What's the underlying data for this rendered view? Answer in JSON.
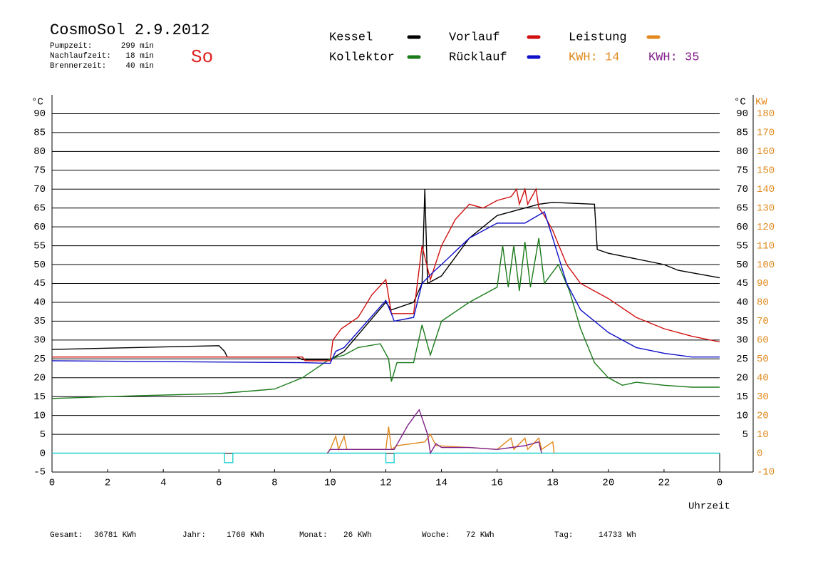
{
  "chart_data": {
    "type": "line",
    "title": "CosmoSol 2.9.2012",
    "day": "So",
    "info": [
      {
        "label": "Pumpzeit:",
        "value": "299 min"
      },
      {
        "label": "Nachlaufzeit:",
        "value": "18 min"
      },
      {
        "label": "Brennerzeit:",
        "value": "40 min"
      }
    ],
    "ylabel": "°C",
    "ylabel_right": "°C",
    "y2label": "KW",
    "xlabel": "Uhrzeit",
    "kwh_labels": [
      {
        "text": "KWH: 14",
        "color": "#e08a1e"
      },
      {
        "text": "KWH: 35",
        "color": "#80208a"
      }
    ],
    "footer": [
      {
        "label": "Gesamt:",
        "value": "36781 KWh"
      },
      {
        "label": "Jahr:",
        "value": "1760 KWh"
      },
      {
        "label": "Monat:",
        "value": "26 KWh"
      },
      {
        "label": "Woche:",
        "value": "72 KWh"
      },
      {
        "label": "Tag:",
        "value": "14733 Wh"
      }
    ],
    "xlim": [
      0,
      24
    ],
    "xticks": [
      0,
      2,
      4,
      6,
      8,
      10,
      12,
      14,
      16,
      18,
      20,
      22,
      {
        "value": 24,
        "label": "0"
      }
    ],
    "ylim": [
      -5,
      95
    ],
    "yticks": [
      -5,
      0,
      5,
      10,
      15,
      20,
      25,
      30,
      35,
      40,
      45,
      50,
      55,
      60,
      65,
      70,
      75,
      80,
      85,
      90
    ],
    "yticks_right": [
      5,
      10,
      15,
      20,
      25,
      30,
      35,
      40,
      45,
      50,
      55,
      60,
      65,
      70,
      75,
      80,
      85,
      90
    ],
    "y2lim": [
      -10,
      190
    ],
    "y2ticks": [
      -10,
      0,
      10,
      20,
      30,
      40,
      50,
      60,
      70,
      80,
      90,
      100,
      110,
      120,
      130,
      140,
      150,
      160,
      170,
      180
    ],
    "grid": true,
    "series": [
      {
        "name": "Kessel",
        "color": "#000000",
        "x": [
          0,
          3,
          6,
          6.2,
          6.3,
          8.8,
          9,
          10,
          10.5,
          12,
          12.2,
          13,
          13.3,
          13.4,
          13.5,
          14,
          15,
          16,
          17,
          17.5,
          18,
          19.5,
          19.6,
          20,
          22,
          22.5,
          24
        ],
        "values": [
          27.5,
          28,
          28.5,
          27,
          25.5,
          25.5,
          24.8,
          24.8,
          27,
          40,
          38,
          40,
          45,
          70,
          45,
          47,
          57,
          63,
          65,
          66,
          66.5,
          66,
          54,
          53,
          50,
          48.5,
          46.5
        ]
      },
      {
        "name": "Kollektor",
        "color": "#1a7a1a",
        "x": [
          0,
          3,
          6,
          8,
          9,
          10,
          10.5,
          11,
          11.8,
          12.1,
          12.2,
          12.4,
          13,
          13.3,
          13.6,
          14,
          15,
          15.5,
          16,
          16.2,
          16.4,
          16.6,
          16.8,
          17,
          17.2,
          17.5,
          17.7,
          17.9,
          18.2,
          18.6,
          19,
          19.5,
          20,
          20.5,
          21,
          22,
          23,
          24
        ],
        "values": [
          14.5,
          15.2,
          15.8,
          17,
          20,
          25,
          26,
          28,
          29,
          25,
          19,
          24,
          24,
          34,
          26,
          35,
          40,
          42,
          44,
          55,
          44,
          55,
          43,
          56,
          44,
          57,
          45,
          47,
          50,
          43,
          33,
          24,
          20,
          18,
          18.8,
          18,
          17.5,
          17.5
        ]
      },
      {
        "name": "Vorlauf",
        "color": "#d01010",
        "x": [
          0,
          9,
          9.1,
          10,
          10.1,
          10.4,
          11,
          11.5,
          12,
          12.2,
          13,
          13.3,
          13.6,
          14,
          14.5,
          15,
          15.5,
          16,
          16.5,
          16.7,
          16.8,
          17,
          17.1,
          17.4,
          17.5,
          17.7,
          18,
          18.5,
          19,
          20,
          21,
          22,
          23,
          24
        ],
        "values": [
          25.5,
          25.5,
          24.5,
          24.5,
          30,
          33,
          36,
          42,
          46,
          37,
          37,
          55,
          46,
          55,
          62,
          66,
          65,
          67,
          68,
          70,
          66,
          70,
          66,
          70,
          65,
          63,
          59,
          50,
          45,
          41,
          36,
          33,
          31,
          29.5
        ]
      },
      {
        "name": "Rücklauf",
        "color": "#1010c8",
        "x": [
          0,
          9,
          10,
          10.2,
          10.5,
          12,
          12.2,
          12.3,
          13,
          13.3,
          13.7,
          14,
          15,
          16,
          17,
          17.7,
          18,
          18.5,
          19,
          20,
          21,
          22,
          23,
          24
        ],
        "values": [
          24.5,
          24,
          23.8,
          27,
          28,
          40.5,
          37,
          35,
          36,
          45,
          48,
          50,
          57,
          61,
          61,
          64,
          57,
          45,
          38,
          32,
          28,
          26.5,
          25.5,
          25.5
        ]
      },
      {
        "name": "Leistung",
        "color": "#e08a1e",
        "axis": "y2",
        "x": [
          9.9,
          10,
          10.2,
          10.3,
          10.5,
          10.6,
          12,
          12.1,
          12.2,
          12.4,
          13.4,
          13.6,
          13.8,
          15,
          16,
          16.5,
          16.6,
          17,
          17.1,
          17.5,
          17.6,
          18,
          18.05
        ],
        "values": [
          0,
          2,
          9,
          2,
          9,
          2,
          2,
          14,
          2,
          4,
          6,
          10,
          4,
          3,
          2,
          8,
          2,
          8,
          2,
          8,
          2,
          6,
          0
        ]
      },
      {
        "color": "#80208a",
        "axis": "y2",
        "x": [
          9.9,
          10,
          12,
          12.3,
          12.8,
          13.2,
          13.5,
          13.6,
          13.8,
          14,
          15,
          16,
          17,
          17.5,
          17.6
        ],
        "values": [
          0,
          2,
          2,
          2,
          15,
          23,
          10,
          0,
          5,
          3,
          3,
          2,
          4,
          6,
          0
        ]
      }
    ],
    "burner": {
      "color": "#20d0d0",
      "x": [
        0,
        6.2,
        6.2,
        6.5,
        6.5,
        12,
        12,
        12.3,
        12.3,
        24
      ],
      "values": [
        0,
        0,
        -2.5,
        -2.5,
        0,
        0,
        -2.5,
        -2.5,
        0,
        0
      ]
    }
  }
}
